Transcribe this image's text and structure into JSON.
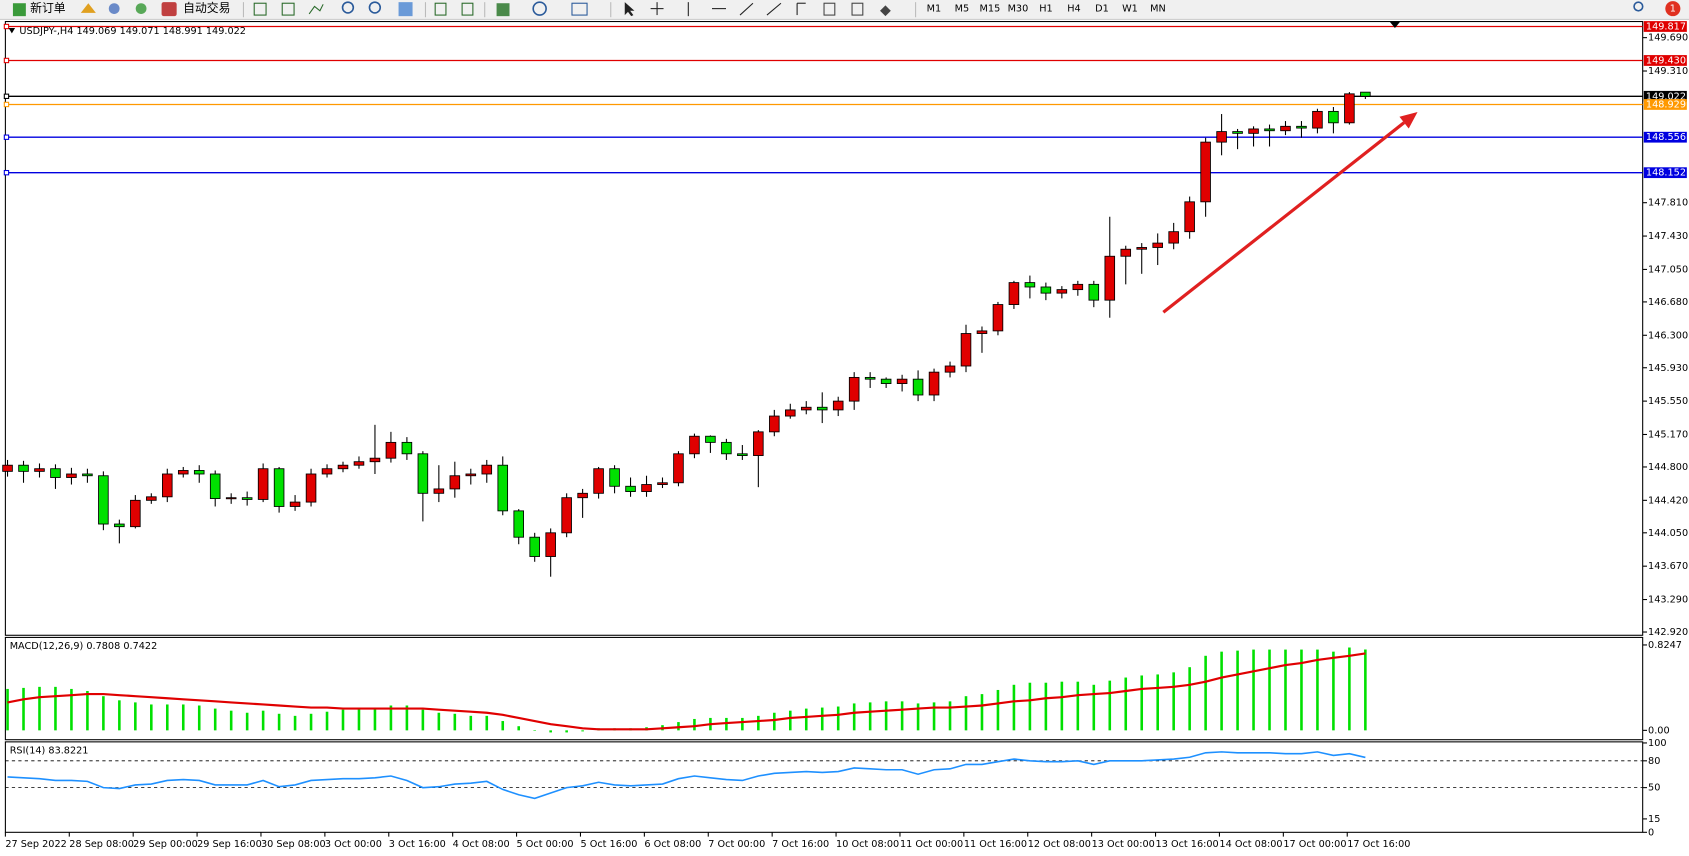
{
  "toolbar": {
    "buttons": [
      "新订单",
      "自动交易"
    ],
    "timeframes": [
      "M1",
      "M5",
      "M15",
      "M30",
      "H1",
      "H4",
      "D1",
      "W1",
      "MN"
    ],
    "notifications": 1
  },
  "chart_data": [
    {
      "type": "candlestick",
      "title": "USDJPY-,H4 149.069 149.071 148.991 149.022",
      "categories": [
        "27 Sep 2022",
        null,
        null,
        null,
        "28 Sep 08:00",
        null,
        null,
        null,
        "29 Sep 00:00",
        null,
        null,
        null,
        "29 Sep 16:00",
        null,
        null,
        null,
        "30 Sep 08:00",
        null,
        null,
        null,
        "3 Oct 00:00",
        null,
        null,
        null,
        "3 Oct 16:00",
        null,
        null,
        null,
        "4 Oct 08:00",
        null,
        null,
        null,
        "5 Oct 00:00",
        null,
        null,
        null,
        "5 Oct 16:00",
        null,
        null,
        null,
        "6 Oct 08:00",
        null,
        null,
        null,
        "7 Oct 00:00",
        null,
        null,
        null,
        "7 Oct 16:00",
        null,
        null,
        null,
        "10 Oct 08:00",
        null,
        null,
        null,
        "11 Oct 00:00",
        null,
        null,
        null,
        "11 Oct 16:00",
        null,
        null,
        null,
        "12 Oct 08:00",
        null,
        null,
        null,
        "13 Oct 00:00",
        null,
        null,
        null,
        "13 Oct 16:00",
        null,
        null,
        null,
        "14 Oct 08:00",
        null,
        null,
        null,
        "17 Oct 00:00",
        null,
        null,
        null,
        "17 Oct 16:00",
        null
      ],
      "open": [
        144.75,
        144.82,
        144.75,
        144.78,
        144.68,
        144.72,
        144.7,
        144.15,
        144.12,
        144.42,
        144.46,
        144.72,
        144.76,
        144.72,
        144.44,
        144.45,
        144.43,
        144.78,
        144.35,
        144.4,
        144.72,
        144.78,
        144.82,
        144.86,
        144.9,
        145.08,
        144.95,
        144.5,
        144.55,
        144.7,
        144.72,
        144.82,
        144.3,
        144.0,
        143.78,
        144.05,
        144.45,
        144.5,
        144.78,
        144.58,
        144.52,
        144.6,
        144.62,
        144.95,
        145.15,
        145.08,
        144.95,
        144.93,
        145.2,
        145.38,
        145.45,
        145.48,
        145.45,
        145.55,
        145.82,
        145.8,
        145.75,
        145.8,
        145.62,
        145.88,
        145.95,
        146.32,
        146.35,
        146.65,
        146.9,
        146.85,
        146.78,
        146.82,
        146.88,
        146.7,
        147.2,
        147.28,
        147.3,
        147.35,
        147.48,
        147.82,
        148.5,
        148.62,
        148.6,
        148.65,
        148.63,
        148.68,
        148.66,
        148.85,
        148.72,
        149.069
      ],
      "high": [
        144.88,
        144.87,
        144.84,
        144.83,
        144.79,
        144.78,
        144.75,
        144.2,
        144.48,
        144.5,
        144.78,
        144.8,
        144.82,
        144.76,
        144.5,
        144.52,
        144.84,
        144.8,
        144.48,
        144.78,
        144.83,
        144.86,
        144.92,
        145.28,
        145.2,
        145.14,
        144.98,
        144.82,
        144.86,
        144.78,
        144.88,
        144.92,
        144.32,
        144.05,
        144.1,
        144.5,
        144.55,
        144.8,
        144.82,
        144.68,
        144.7,
        144.68,
        144.98,
        145.18,
        145.16,
        145.12,
        145.05,
        145.22,
        145.45,
        145.52,
        145.55,
        145.65,
        145.6,
        145.88,
        145.88,
        145.82,
        145.85,
        145.9,
        145.92,
        146.0,
        146.42,
        146.4,
        146.68,
        146.92,
        146.98,
        146.9,
        146.86,
        146.92,
        146.92,
        147.65,
        147.32,
        147.35,
        147.46,
        147.58,
        147.88,
        148.55,
        148.82,
        148.65,
        148.68,
        148.7,
        148.74,
        148.74,
        148.88,
        148.9,
        149.07,
        149.071
      ],
      "low": [
        144.69,
        144.62,
        144.68,
        144.55,
        144.6,
        144.62,
        144.08,
        143.93,
        144.1,
        144.38,
        144.4,
        144.68,
        144.62,
        144.35,
        144.38,
        144.36,
        144.4,
        144.28,
        144.3,
        144.35,
        144.68,
        144.74,
        144.78,
        144.72,
        144.85,
        144.88,
        144.18,
        144.4,
        144.45,
        144.6,
        144.62,
        144.25,
        143.92,
        143.72,
        143.55,
        144.0,
        144.22,
        144.44,
        144.5,
        144.46,
        144.46,
        144.56,
        144.58,
        144.9,
        144.96,
        144.88,
        144.88,
        144.57,
        145.15,
        145.35,
        145.4,
        145.3,
        145.38,
        145.45,
        145.7,
        145.7,
        145.66,
        145.55,
        145.55,
        145.82,
        145.88,
        146.1,
        146.3,
        146.6,
        146.72,
        146.7,
        146.72,
        146.75,
        146.62,
        146.5,
        146.88,
        147.0,
        147.1,
        147.28,
        147.4,
        147.65,
        148.35,
        148.42,
        148.45,
        148.45,
        148.58,
        148.55,
        148.6,
        148.6,
        148.7,
        148.991
      ],
      "close": [
        144.82,
        144.75,
        144.78,
        144.68,
        144.72,
        144.7,
        144.15,
        144.12,
        144.42,
        144.46,
        144.72,
        144.76,
        144.72,
        144.44,
        144.45,
        144.43,
        144.78,
        144.35,
        144.4,
        144.72,
        144.78,
        144.82,
        144.86,
        144.9,
        145.08,
        144.95,
        144.5,
        144.55,
        144.7,
        144.72,
        144.82,
        144.3,
        144.0,
        143.78,
        144.05,
        144.45,
        144.5,
        144.78,
        144.58,
        144.52,
        144.6,
        144.62,
        144.95,
        145.15,
        145.08,
        144.95,
        144.93,
        145.2,
        145.38,
        145.45,
        145.48,
        145.45,
        145.55,
        145.82,
        145.8,
        145.75,
        145.8,
        145.62,
        145.88,
        145.95,
        146.32,
        146.35,
        146.65,
        146.9,
        146.85,
        146.78,
        146.82,
        146.88,
        146.7,
        147.2,
        147.28,
        147.3,
        147.35,
        147.48,
        147.82,
        148.5,
        148.62,
        148.6,
        148.65,
        148.63,
        148.68,
        148.66,
        148.85,
        148.72,
        149.05,
        149.022
      ],
      "up_color": "#e00000",
      "down_color": "#00e000",
      "ylim": [
        142.883,
        149.849
      ],
      "yticks": [
        {
          "value": 149.69,
          "label": "149.690"
        },
        {
          "value": 149.31,
          "label": "149.310"
        },
        {
          "value": 147.81,
          "label": "147.810"
        },
        {
          "value": 147.43,
          "label": "147.430"
        },
        {
          "value": 147.05,
          "label": "147.050"
        },
        {
          "value": 146.68,
          "label": "146.680"
        },
        {
          "value": 146.3,
          "label": "146.300"
        },
        {
          "value": 145.93,
          "label": "145.930"
        },
        {
          "value": 145.55,
          "label": "145.550"
        },
        {
          "value": 145.17,
          "label": "145.170"
        },
        {
          "value": 144.8,
          "label": "144.800"
        },
        {
          "value": 144.42,
          "label": "144.420"
        },
        {
          "value": 144.05,
          "label": "144.050"
        },
        {
          "value": 143.67,
          "label": "143.670"
        },
        {
          "value": 143.29,
          "label": "143.290"
        },
        {
          "value": 142.92,
          "label": "142.920"
        }
      ],
      "lines": [
        {
          "price": 149.817,
          "color": "#e00000"
        },
        {
          "price": 149.43,
          "label": "149.430",
          "color": "#e00000"
        },
        {
          "price": 149.022,
          "color": "#000000"
        },
        {
          "price": 148.929,
          "color": "#ff9900"
        },
        {
          "price": 148.556,
          "color": "#0000e0"
        },
        {
          "price": 148.152,
          "color": "#0000e0"
        }
      ]
    },
    {
      "type": "macd",
      "title": "MACD(12,26,9) 0.7808 0.7422",
      "series": [
        {
          "style": "bar",
          "color": "#00e000",
          "values": [
            0.4,
            0.41,
            0.42,
            0.42,
            0.4,
            0.38,
            0.33,
            0.29,
            0.27,
            0.25,
            0.25,
            0.25,
            0.24,
            0.21,
            0.19,
            0.17,
            0.19,
            0.16,
            0.14,
            0.16,
            0.18,
            0.2,
            0.21,
            0.22,
            0.24,
            0.24,
            0.2,
            0.17,
            0.16,
            0.14,
            0.14,
            0.09,
            0.04,
            0.0,
            -0.02,
            -0.02,
            -0.01,
            0.02,
            0.02,
            0.02,
            0.03,
            0.05,
            0.08,
            0.11,
            0.12,
            0.12,
            0.12,
            0.14,
            0.17,
            0.19,
            0.21,
            0.22,
            0.23,
            0.26,
            0.27,
            0.28,
            0.28,
            0.26,
            0.27,
            0.28,
            0.33,
            0.35,
            0.39,
            0.44,
            0.46,
            0.46,
            0.47,
            0.47,
            0.44,
            0.48,
            0.51,
            0.53,
            0.54,
            0.56,
            0.61,
            0.72,
            0.76,
            0.77,
            0.78,
            0.78,
            0.78,
            0.78,
            0.78,
            0.76,
            0.8,
            0.7808
          ]
        },
        {
          "style": "line",
          "color": "#e00000",
          "values": [
            0.27,
            0.3,
            0.32,
            0.33,
            0.34,
            0.35,
            0.35,
            0.34,
            0.33,
            0.32,
            0.31,
            0.3,
            0.29,
            0.28,
            0.27,
            0.26,
            0.25,
            0.24,
            0.23,
            0.22,
            0.22,
            0.21,
            0.21,
            0.21,
            0.21,
            0.21,
            0.21,
            0.2,
            0.19,
            0.18,
            0.17,
            0.15,
            0.12,
            0.09,
            0.06,
            0.04,
            0.02,
            0.01,
            0.01,
            0.01,
            0.01,
            0.02,
            0.03,
            0.04,
            0.06,
            0.07,
            0.08,
            0.09,
            0.1,
            0.12,
            0.13,
            0.14,
            0.15,
            0.17,
            0.18,
            0.19,
            0.2,
            0.21,
            0.22,
            0.22,
            0.23,
            0.24,
            0.26,
            0.28,
            0.29,
            0.31,
            0.32,
            0.34,
            0.35,
            0.36,
            0.38,
            0.4,
            0.41,
            0.42,
            0.44,
            0.47,
            0.51,
            0.54,
            0.57,
            0.6,
            0.63,
            0.65,
            0.68,
            0.7,
            0.72,
            0.7422
          ]
        }
      ],
      "ylim": [
        -0.08,
        0.887
      ],
      "yticks": [
        0.8247,
        {
          "value": 0,
          "label": "0.00"
        }
      ]
    },
    {
      "type": "line",
      "title": "RSI(14) 83.8221",
      "color": "#1e90ff",
      "values": [
        62,
        61,
        60,
        58,
        58,
        57,
        50,
        49,
        53,
        54,
        58,
        59,
        58,
        53,
        53,
        53,
        58,
        51,
        53,
        58,
        59,
        60,
        60,
        61,
        63,
        58,
        50,
        51,
        54,
        55,
        57,
        48,
        42,
        38,
        44,
        50,
        52,
        56,
        53,
        52,
        53,
        54,
        60,
        63,
        61,
        59,
        58,
        63,
        66,
        67,
        68,
        67,
        68,
        72,
        71,
        70,
        70,
        65,
        70,
        71,
        76,
        76,
        79,
        82,
        80,
        79,
        79,
        80,
        76,
        80,
        80,
        80,
        81,
        82,
        84,
        89,
        90,
        89,
        89,
        89,
        88,
        88,
        90,
        86,
        88,
        83.8221
      ],
      "ylim": [
        0,
        100
      ],
      "yticks": [
        100,
        80,
        50,
        15,
        0
      ],
      "levels": [
        80,
        50
      ]
    }
  ]
}
